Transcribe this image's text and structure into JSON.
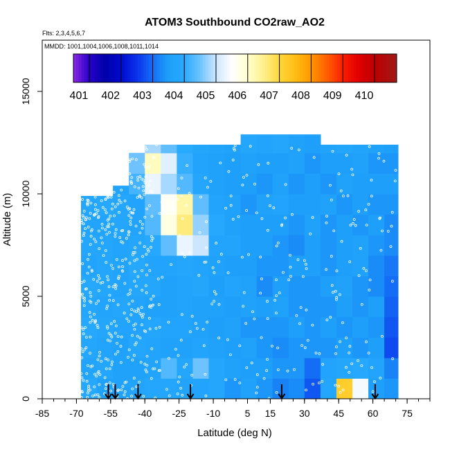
{
  "chart_data": {
    "type": "heatmap",
    "title": "ATOM3 Southbound CO2raw_AO2",
    "flights_note": "Flts: 2,3,4,5,6,7",
    "dates_note": "MMDD: 1001,1004,1006,1008,1011,1014",
    "xlabel": "Latitude (deg N)",
    "ylabel": "Altitude (m)",
    "xlim": [
      -85,
      85
    ],
    "ylim": [
      0,
      17500
    ],
    "x_ticks": [
      -85,
      -70,
      -55,
      -40,
      -25,
      -10,
      5,
      15,
      30,
      45,
      60,
      75
    ],
    "y_ticks": [
      0,
      5000,
      10000,
      15000
    ],
    "colorbar": {
      "min": 400.5,
      "max": 410.7,
      "tick_values": [
        401,
        402,
        403,
        404,
        405,
        406,
        407,
        408,
        409,
        410
      ],
      "tick_labels": [
        "401",
        "402",
        "403",
        "404",
        "405",
        "406",
        "407",
        "408",
        "409",
        "410"
      ]
    },
    "arrow_latitudes": [
      -56,
      -53,
      -43,
      -20,
      20,
      61
    ],
    "heatmap": {
      "lat_bins": [
        -68,
        -61,
        -54,
        -47,
        -40,
        -33,
        -26,
        -19,
        -12,
        -5,
        2,
        9,
        16,
        23,
        30,
        37,
        44,
        51,
        58,
        65,
        71
      ],
      "alt_bins": [
        0,
        1000,
        2000,
        3000,
        4000,
        5000,
        6000,
        7000,
        8000,
        9000,
        10000,
        11000,
        12000,
        13000
      ],
      "coverage_top": [
        9900,
        9900,
        10400,
        12000,
        12400,
        12400,
        12400,
        12400,
        12400,
        12400,
        12900,
        12900,
        12900,
        12900,
        12900,
        12400,
        12400,
        12400,
        12400,
        12400,
        12000
      ],
      "values": [
        [
          403.9,
          403.6,
          403.6,
          403.7,
          403.8,
          403.8,
          403.7,
          403.7,
          403.8,
          403.4,
          403.6,
          403.4,
          403.2,
          403.3,
          402.8,
          403.8,
          407.2,
          405.4,
          403.5,
          403.4
        ],
        [
          403.7,
          403.8,
          403.6,
          403.6,
          403.7,
          404.3,
          403.8,
          404.5,
          403.8,
          403.6,
          403.5,
          403.5,
          403.4,
          403.4,
          403.0,
          403.7,
          403.8,
          403.9,
          403.7,
          403.2
        ],
        [
          403.8,
          403.7,
          403.6,
          403.8,
          403.7,
          403.6,
          403.6,
          403.7,
          403.6,
          403.5,
          403.6,
          403.4,
          403.3,
          403.4,
          403.4,
          403.4,
          403.5,
          403.4,
          403.5,
          402.7
        ],
        [
          403.9,
          403.8,
          403.7,
          403.7,
          403.8,
          403.7,
          403.7,
          403.6,
          403.5,
          403.6,
          403.4,
          403.4,
          403.4,
          403.5,
          403.4,
          403.5,
          403.4,
          403.5,
          403.4,
          402.8
        ],
        [
          403.8,
          403.7,
          403.8,
          403.7,
          403.6,
          403.6,
          403.7,
          403.6,
          403.6,
          403.5,
          403.6,
          403.5,
          403.6,
          403.4,
          403.4,
          403.4,
          403.5,
          403.4,
          403.5,
          402.9
        ],
        [
          403.9,
          403.8,
          403.7,
          403.8,
          403.8,
          403.6,
          403.7,
          403.8,
          403.5,
          403.7,
          403.6,
          403.3,
          403.5,
          403.4,
          403.4,
          403.5,
          403.6,
          403.4,
          403.3,
          403.0
        ],
        [
          403.7,
          403.8,
          403.7,
          403.9,
          403.7,
          403.7,
          403.8,
          403.7,
          403.6,
          403.5,
          403.5,
          403.4,
          403.4,
          403.5,
          403.5,
          403.4,
          403.5,
          403.6,
          403.3,
          403.1
        ],
        [
          403.8,
          403.8,
          403.7,
          403.8,
          403.9,
          404.4,
          405.3,
          405.0,
          403.7,
          403.7,
          403.5,
          403.5,
          403.4,
          403.3,
          403.5,
          403.4,
          403.5,
          403.6,
          403.4,
          403.3
        ],
        [
          403.7,
          403.7,
          403.8,
          403.7,
          404.3,
          405.8,
          406.6,
          404.7,
          403.9,
          403.6,
          403.5,
          403.5,
          403.5,
          403.4,
          403.6,
          403.4,
          403.5,
          403.4,
          403.5,
          403.3
        ],
        [
          403.8,
          403.9,
          403.8,
          403.7,
          404.4,
          405.6,
          406.3,
          404.4,
          403.7,
          403.6,
          403.4,
          403.6,
          403.7,
          403.5,
          403.5,
          403.6,
          403.4,
          403.5,
          403.4,
          403.4
        ],
        [
          403.7,
          403.8,
          403.7,
          404.2,
          405.3,
          404.8,
          404.3,
          403.8,
          403.6,
          403.5,
          403.5,
          403.4,
          403.6,
          403.4,
          403.5,
          403.4,
          403.6,
          403.5,
          403.5,
          403.5
        ],
        [
          403.6,
          403.6,
          403.7,
          404.5,
          406.1,
          405.2,
          404.1,
          403.7,
          403.6,
          403.5,
          403.6,
          403.5,
          403.5,
          403.6,
          403.4,
          403.5,
          403.5,
          403.6,
          403.4,
          403.4
        ],
        [
          403.7,
          403.5,
          403.4,
          403.7,
          404.8,
          404.4,
          404.0,
          403.8,
          403.7,
          403.6,
          403.8,
          403.7,
          403.8,
          403.6,
          403.5,
          403.7,
          403.8,
          403.7,
          403.6,
          403.5
        ]
      ]
    }
  }
}
